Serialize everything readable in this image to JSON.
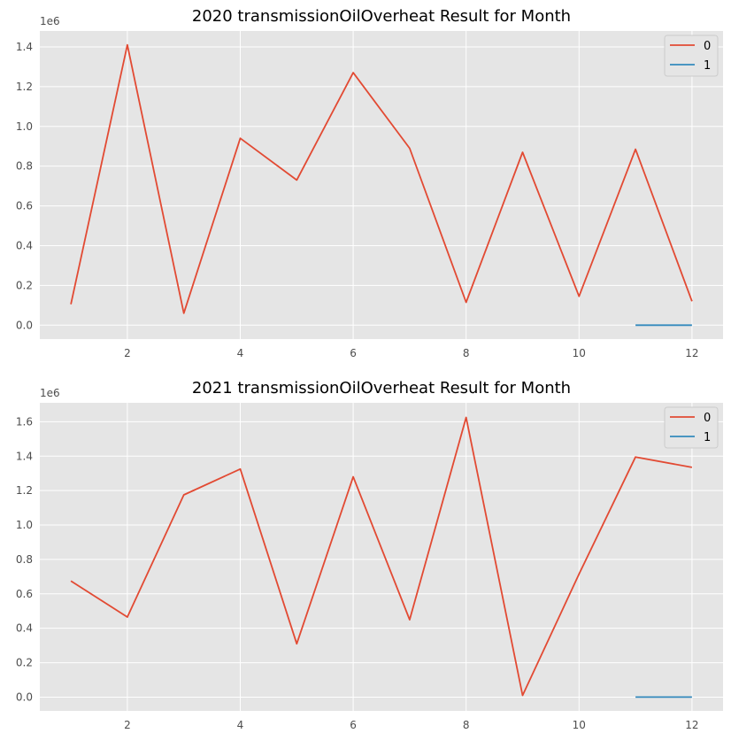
{
  "charts": [
    {
      "title": "2020 transmissionOilOverheat Result for Month",
      "offset_label": "1e6",
      "xticks": [
        "2",
        "4",
        "6",
        "8",
        "10",
        "12"
      ],
      "yticks": [
        "0.0",
        "0.2",
        "0.4",
        "0.6",
        "0.8",
        "1.0",
        "1.2",
        "1.4"
      ],
      "legend": [
        "0",
        "1"
      ]
    },
    {
      "title": "2021 transmissionOilOverheat Result for Month",
      "offset_label": "1e6",
      "xticks": [
        "2",
        "4",
        "6",
        "8",
        "10",
        "12"
      ],
      "yticks": [
        "0.0",
        "0.2",
        "0.4",
        "0.6",
        "0.8",
        "1.0",
        "1.2",
        "1.4",
        "1.6"
      ],
      "legend": [
        "0",
        "1"
      ]
    }
  ],
  "colors": {
    "background": "#e5e5e5",
    "grid": "#ffffff",
    "series_0": "#e24a33",
    "series_1": "#348abd"
  },
  "chart_data": [
    {
      "type": "line",
      "title": "2020 transmissionOilOverheat Result for Month",
      "xlabel": "",
      "ylabel": "",
      "y_scale_label": "1e6",
      "xlim": [
        0.45,
        12.55
      ],
      "ylim": [
        -70000,
        1480000
      ],
      "x_ticks": [
        2,
        4,
        6,
        8,
        10,
        12
      ],
      "y_ticks": [
        0,
        200000,
        400000,
        600000,
        800000,
        1000000,
        1200000,
        1400000
      ],
      "grid": true,
      "legend_position": "top-right",
      "series": [
        {
          "name": "0",
          "color": "#e24a33",
          "x": [
            1,
            2,
            3,
            4,
            5,
            6,
            7,
            8,
            9,
            10,
            11,
            12
          ],
          "y": [
            105000,
            1410000,
            60000,
            940000,
            730000,
            1270000,
            890000,
            115000,
            870000,
            145000,
            885000,
            120000
          ]
        },
        {
          "name": "1",
          "color": "#348abd",
          "x": [
            11,
            12
          ],
          "y": [
            0,
            0
          ]
        }
      ]
    },
    {
      "type": "line",
      "title": "2021 transmissionOilOverheat Result for Month",
      "xlabel": "",
      "ylabel": "",
      "y_scale_label": "1e6",
      "xlim": [
        0.45,
        12.55
      ],
      "ylim": [
        -80000,
        1710000
      ],
      "x_ticks": [
        2,
        4,
        6,
        8,
        10,
        12
      ],
      "y_ticks": [
        0,
        200000,
        400000,
        600000,
        800000,
        1000000,
        1200000,
        1400000,
        1600000
      ],
      "grid": true,
      "legend_position": "top-right",
      "series": [
        {
          "name": "0",
          "color": "#e24a33",
          "x": [
            1,
            2,
            3,
            4,
            5,
            6,
            7,
            8,
            9,
            10,
            11,
            12
          ],
          "y": [
            675000,
            465000,
            1175000,
            1325000,
            310000,
            1280000,
            450000,
            1625000,
            10000,
            715000,
            1395000,
            1335000
          ]
        },
        {
          "name": "1",
          "color": "#348abd",
          "x": [
            11,
            12
          ],
          "y": [
            0,
            0
          ]
        }
      ]
    }
  ]
}
